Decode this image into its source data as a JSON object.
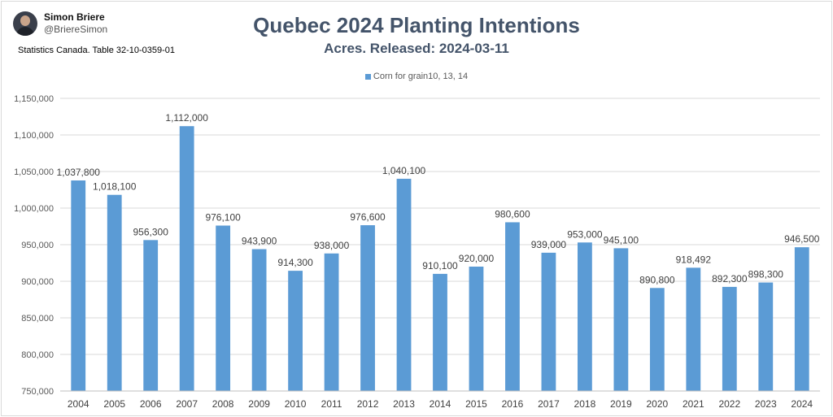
{
  "author": {
    "name": "Simon Briere",
    "handle": "@BriereSimon"
  },
  "source": "Statistics Canada. Table 32-10-0359-01",
  "colors": {
    "bar": "#5b9bd5",
    "title": "#44546a",
    "grid": "#d9d9d9"
  },
  "chart_data": {
    "type": "bar",
    "title": "Quebec 2024 Planting Intentions",
    "subtitle": "Acres. Released: 2024-03-11",
    "categories": [
      "2004",
      "2005",
      "2006",
      "2007",
      "2008",
      "2009",
      "2010",
      "2011",
      "2012",
      "2013",
      "2014",
      "2015",
      "2016",
      "2017",
      "2018",
      "2019",
      "2020",
      "2021",
      "2022",
      "2023",
      "2024"
    ],
    "series": [
      {
        "name": "Corn for grain10, 13, 14",
        "values": [
          1037800,
          1018100,
          956300,
          1112000,
          976100,
          943900,
          914300,
          938000,
          976600,
          1040100,
          910100,
          920000,
          980600,
          939000,
          953000,
          945100,
          890800,
          918492,
          892300,
          898300,
          946500
        ],
        "labels": [
          "1,037,800",
          "1,018,100",
          "956,300",
          "1,112,000",
          "976,100",
          "943,900",
          "914,300",
          "938,000",
          "976,600",
          "1,040,100",
          "910,100",
          "920,000",
          "980,600",
          "939,000",
          "953,000",
          "945,100",
          "890,800",
          "918,492",
          "892,300",
          "898,300",
          "946,500"
        ]
      }
    ],
    "ylim": [
      750000,
      1150000
    ],
    "yticks": [
      750000,
      800000,
      850000,
      900000,
      950000,
      1000000,
      1050000,
      1100000,
      1150000
    ],
    "ytick_labels": [
      "750,000",
      "800,000",
      "850,000",
      "900,000",
      "950,000",
      "1,000,000",
      "1,050,000",
      "1,100,000",
      "1,150,000"
    ],
    "grid": true,
    "legend_position": "top"
  }
}
